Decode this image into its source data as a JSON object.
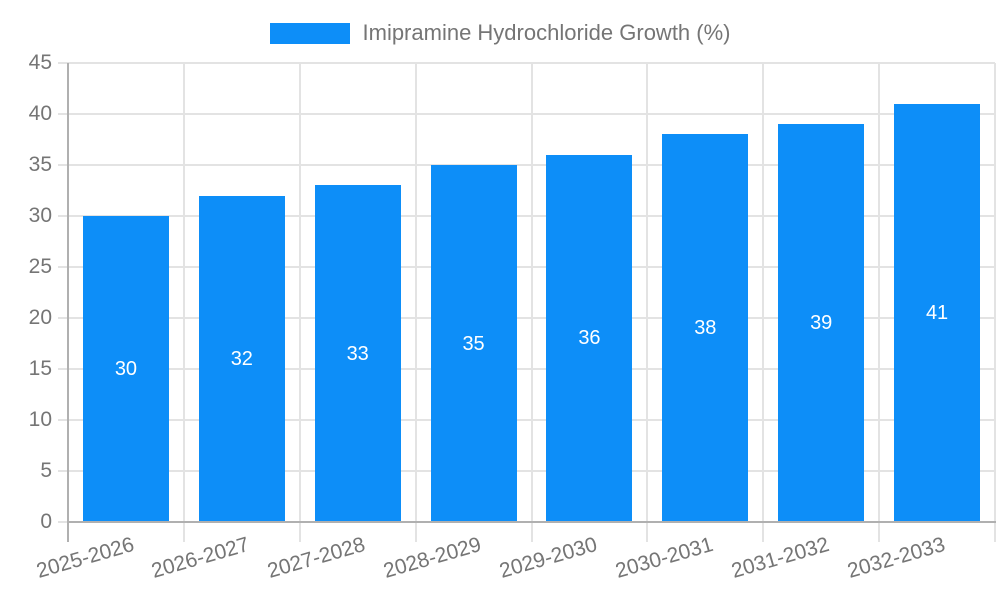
{
  "chart_data": {
    "type": "bar",
    "title": "",
    "legend_position": "top-center",
    "categories": [
      "2025-2026",
      "2026-2027",
      "2027-2028",
      "2028-2029",
      "2029-2030",
      "2030-2031",
      "2031-2032",
      "2032-2033"
    ],
    "series": [
      {
        "name": "Imipramine Hydrochloride Growth (%)",
        "values": [
          30,
          32,
          33,
          35,
          36,
          38,
          39,
          41
        ]
      }
    ],
    "xlabel": "",
    "ylabel": "",
    "ylim": [
      0,
      45
    ],
    "ytick_step": 5,
    "grid": true,
    "value_labels": "inside-center",
    "colors": {
      "bar": "#0d8ef8",
      "grid": "#e3e3e3",
      "axis": "#b0b0b0",
      "tick_text": "#757575",
      "legend_text": "#757575",
      "value_label_text": "#ffffff",
      "background": "#ffffff"
    }
  }
}
